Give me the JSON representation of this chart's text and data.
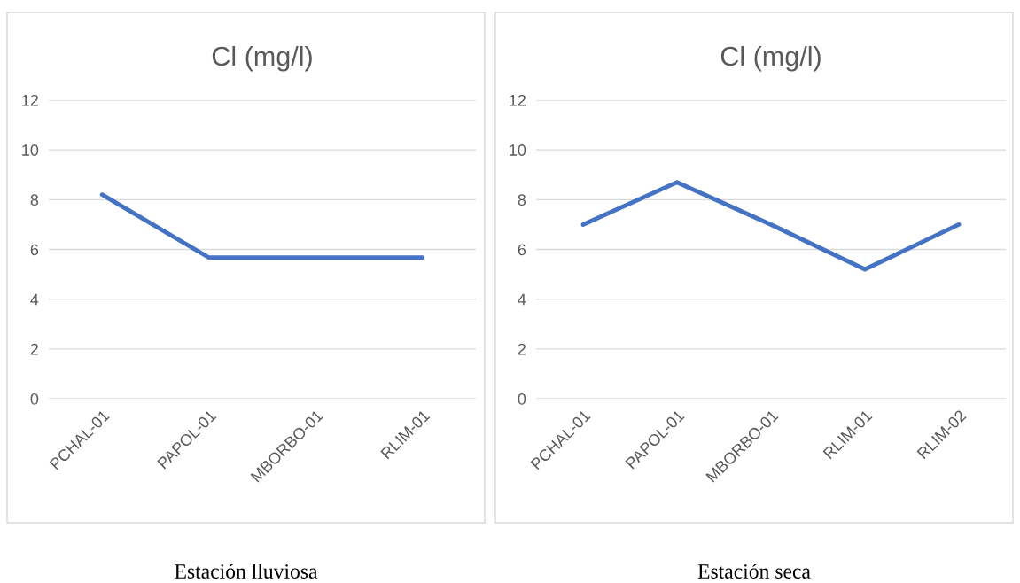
{
  "chart_data": [
    {
      "type": "line",
      "title": "Cl (mg/l)",
      "categories": [
        "PCHAL-01",
        "PAPOL-01",
        "MBORBO-01",
        "RLIM-01"
      ],
      "series": [
        {
          "color": "#4472c4",
          "values": [
            8.2,
            5.67,
            5.67,
            5.67
          ]
        }
      ],
      "ylim": [
        0,
        12
      ],
      "yticks": [
        0,
        2,
        4,
        6,
        8,
        10,
        12
      ],
      "grid": "y",
      "marker": "none",
      "line_style": "solid",
      "annotations": [
        "Estación lluviosa"
      ]
    },
    {
      "type": "line",
      "title": "Cl (mg/l)",
      "categories": [
        "PCHAL-01",
        "PAPOL-01",
        "MBORBO-01",
        "RLIM-01",
        "RLIM-02"
      ],
      "series": [
        {
          "color": "#4472c4",
          "values": [
            7.0,
            8.7,
            7.0,
            5.2,
            7.0
          ]
        }
      ],
      "ylim": [
        0,
        12
      ],
      "yticks": [
        0,
        2,
        4,
        6,
        8,
        10,
        12
      ],
      "grid": "y",
      "marker": "none",
      "line_style": "solid",
      "annotations": [
        "Estación seca"
      ]
    }
  ]
}
